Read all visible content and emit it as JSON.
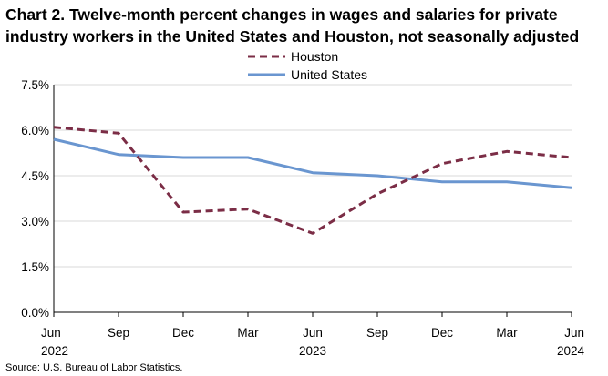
{
  "chart_data": {
    "type": "line",
    "title": "Chart 2. Twelve-month percent changes in wages and salaries for private industry workers in the United States and Houston, not seasonally adjusted",
    "categories": [
      "Jun",
      "Sep",
      "Dec",
      "Mar",
      "Jun",
      "Sep",
      "Dec",
      "Mar",
      "Jun"
    ],
    "year_labels": [
      {
        "index": 0,
        "label": "2022"
      },
      {
        "index": 4,
        "label": "2023"
      },
      {
        "index": 8,
        "label": "2024"
      }
    ],
    "y_ticks": [
      "0.0%",
      "1.5%",
      "3.0%",
      "4.5%",
      "6.0%",
      "7.5%"
    ],
    "y_tick_values": [
      0,
      1.5,
      3.0,
      4.5,
      6.0,
      7.5
    ],
    "ylim": [
      0,
      7.5
    ],
    "xlabel": "",
    "ylabel": "",
    "grid": true,
    "legend_position": "top-center",
    "series": [
      {
        "name": "Houston",
        "color": "#7b2d46",
        "style": "dashed",
        "values": [
          6.1,
          5.9,
          3.3,
          3.4,
          2.6,
          3.9,
          4.9,
          5.3,
          5.1
        ]
      },
      {
        "name": "United States",
        "color": "#6a96d0",
        "style": "solid",
        "values": [
          5.7,
          5.2,
          5.1,
          5.1,
          4.6,
          4.5,
          4.3,
          4.3,
          4.1
        ]
      }
    ]
  },
  "source": "Source: U.S. Bureau of Labor Statistics."
}
